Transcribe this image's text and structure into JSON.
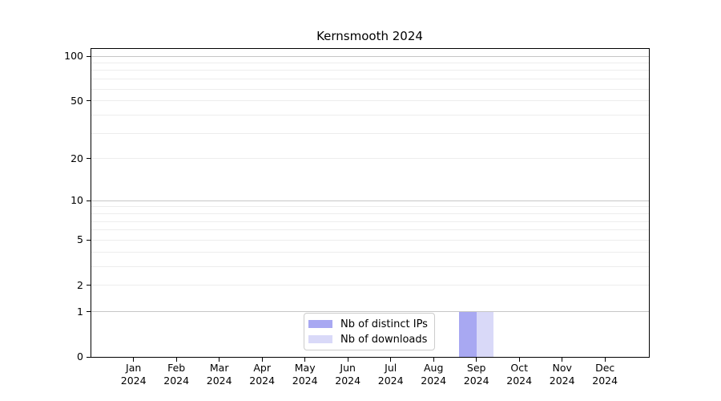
{
  "chart_data": {
    "type": "bar",
    "title": "Kernsmooth 2024",
    "categories": [
      "Jan",
      "Feb",
      "Mar",
      "Apr",
      "May",
      "Jun",
      "Jul",
      "Aug",
      "Sep",
      "Oct",
      "Nov",
      "Dec"
    ],
    "x_tick_second_line": "2024",
    "series": [
      {
        "name": "Nb of distinct IPs",
        "color": "#a8a8f2",
        "values": [
          0,
          0,
          0,
          0,
          0,
          0,
          0,
          0,
          1,
          0,
          0,
          0
        ]
      },
      {
        "name": "Nb of downloads",
        "color": "#d9d9f8",
        "values": [
          0,
          0,
          0,
          0,
          0,
          0,
          0,
          0,
          1,
          0,
          0,
          0
        ]
      }
    ],
    "xlabel": "",
    "ylabel": "",
    "yscale": "log1p",
    "ylim": [
      0,
      113.2
    ],
    "y_ticks": [
      0,
      1,
      2,
      5,
      10,
      20,
      50,
      100
    ],
    "y_major_gridlines": [
      1,
      10,
      100
    ],
    "y_minor_gridlines": [
      2,
      3,
      4,
      5,
      6,
      7,
      8,
      9,
      20,
      30,
      40,
      50,
      60,
      70,
      80,
      90
    ],
    "grid": "horizontal",
    "legend": {
      "position": "lower-center",
      "entries": [
        "Nb of distinct IPs",
        "Nb of downloads"
      ]
    }
  },
  "colors": {
    "background": "#ffffff",
    "spine": "#000000",
    "major_gridline": "#c6c6c6",
    "minor_gridline": "#ededed",
    "legend_border": "#cccccc",
    "bar_distinct_ips": "#a8a8f2",
    "bar_downloads": "#d9d9f8"
  }
}
